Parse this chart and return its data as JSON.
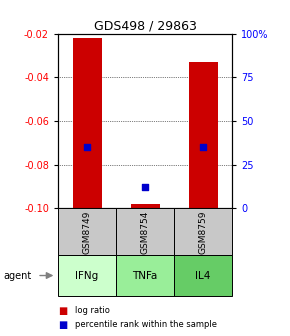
{
  "title": "GDS498 / 29863",
  "samples": [
    "GSM8749",
    "GSM8754",
    "GSM8759"
  ],
  "agents": [
    "IFNg",
    "TNFa",
    "IL4"
  ],
  "log_ratios": [
    -0.022,
    -0.098,
    -0.033
  ],
  "percentile_ranks": [
    35,
    12,
    35
  ],
  "ylim_left": [
    -0.1,
    -0.02
  ],
  "ylim_right": [
    0,
    100
  ],
  "yticks_left": [
    -0.1,
    -0.08,
    -0.06,
    -0.04,
    -0.02
  ],
  "yticks_right": [
    0,
    25,
    50,
    75,
    100
  ],
  "ytick_right_labels": [
    "0",
    "25",
    "50",
    "75",
    "100%"
  ],
  "bar_color": "#cc0000",
  "dot_color": "#0000cc",
  "sample_bg_color": "#c8c8c8",
  "agent_colors": [
    "#ccffcc",
    "#99ee99",
    "#66cc66"
  ],
  "bar_width": 0.5,
  "legend_bar_color": "#cc0000",
  "legend_dot_color": "#0000cc"
}
